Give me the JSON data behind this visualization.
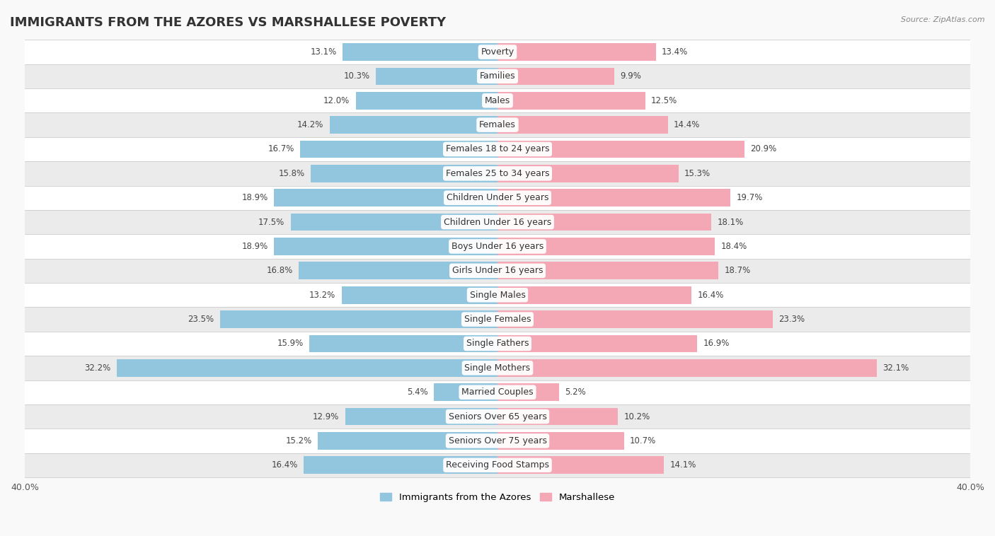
{
  "title": "IMMIGRANTS FROM THE AZORES VS MARSHALLESE POVERTY",
  "source": "Source: ZipAtlas.com",
  "categories": [
    "Poverty",
    "Families",
    "Males",
    "Females",
    "Females 18 to 24 years",
    "Females 25 to 34 years",
    "Children Under 5 years",
    "Children Under 16 years",
    "Boys Under 16 years",
    "Girls Under 16 years",
    "Single Males",
    "Single Females",
    "Single Fathers",
    "Single Mothers",
    "Married Couples",
    "Seniors Over 65 years",
    "Seniors Over 75 years",
    "Receiving Food Stamps"
  ],
  "left_values": [
    13.1,
    10.3,
    12.0,
    14.2,
    16.7,
    15.8,
    18.9,
    17.5,
    18.9,
    16.8,
    13.2,
    23.5,
    15.9,
    32.2,
    5.4,
    12.9,
    15.2,
    16.4
  ],
  "right_values": [
    13.4,
    9.9,
    12.5,
    14.4,
    20.9,
    15.3,
    19.7,
    18.1,
    18.4,
    18.7,
    16.4,
    23.3,
    16.9,
    32.1,
    5.2,
    10.2,
    10.7,
    14.1
  ],
  "left_color": "#92C5DE",
  "right_color": "#F4A7B4",
  "background_color": "#f9f9f9",
  "row_bg_even": "#ffffff",
  "row_bg_odd": "#ebebeb",
  "xlim": 40.0,
  "legend_left": "Immigrants from the Azores",
  "legend_right": "Marshallese",
  "title_fontsize": 13,
  "label_fontsize": 9,
  "value_fontsize": 8.5,
  "axis_fontsize": 9
}
